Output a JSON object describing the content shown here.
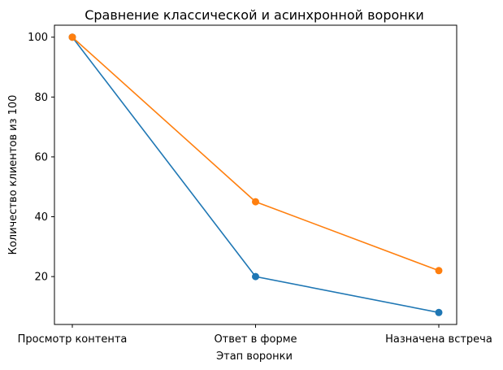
{
  "chart_data": {
    "type": "line",
    "title": "Сравнение классической и асинхронной воронки",
    "xlabel": "Этап воронки",
    "ylabel": "Количество клиентов из 100",
    "categories": [
      "Просмотр контента",
      "Ответ в форме",
      "Назначена встреча"
    ],
    "yticks": [
      20,
      40,
      60,
      80,
      100
    ],
    "ylim": [
      4,
      104
    ],
    "grid": false,
    "series": [
      {
        "values": [
          100,
          20,
          8
        ],
        "color": "#1f77b4"
      },
      {
        "values": [
          100,
          45,
          22
        ],
        "color": "#ff7f0e"
      }
    ]
  }
}
